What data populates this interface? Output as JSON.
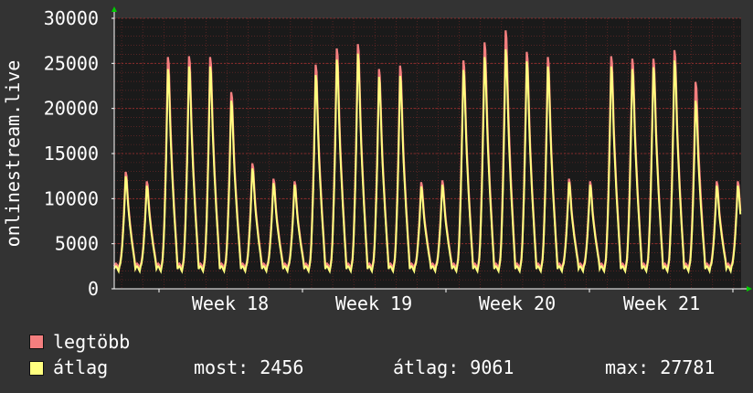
{
  "chart_data": {
    "type": "area",
    "ylabel": "onlinestream.live",
    "x_tick_labels": [
      "Week 18",
      "Week 19",
      "Week 20",
      "Week 21"
    ],
    "y_ticks": [
      0,
      5000,
      10000,
      15000,
      20000,
      25000,
      30000
    ],
    "ylim": [
      0,
      30000
    ],
    "grid": true,
    "colors": {
      "max": "#f47f7f",
      "avg": "#ffff7f",
      "background": "#333333",
      "plot_bg": "#1a1a1a",
      "grid": "#7a2a2a"
    },
    "series": [
      {
        "name": "legtöbb",
        "role": "max",
        "daily_peaks": [
          13500,
          12400,
          26900,
          27000,
          26900,
          22800,
          14500,
          12700,
          12400,
          26000,
          27900,
          28400,
          25500,
          25900,
          12300,
          12500,
          26500,
          28600,
          30000,
          27500,
          26900,
          12700,
          12400,
          27000,
          26700,
          26700,
          27700,
          24000,
          12400,
          12400
        ]
      },
      {
        "name": "átlag",
        "role": "avg",
        "daily_peaks": [
          13000,
          11900,
          25500,
          25800,
          25800,
          21800,
          13900,
          12200,
          12000,
          24800,
          26600,
          27300,
          24600,
          24700,
          11800,
          12000,
          25400,
          26900,
          27800,
          26400,
          25800,
          12300,
          12000,
          25800,
          25500,
          25700,
          26500,
          21800,
          11900,
          11900
        ]
      }
    ]
  },
  "legend": {
    "max_label": "legtöbb",
    "avg_label": "átlag",
    "now_text": "most: 2456",
    "avg_text": "átlag: 9061",
    "max_text": "max: 27781"
  }
}
